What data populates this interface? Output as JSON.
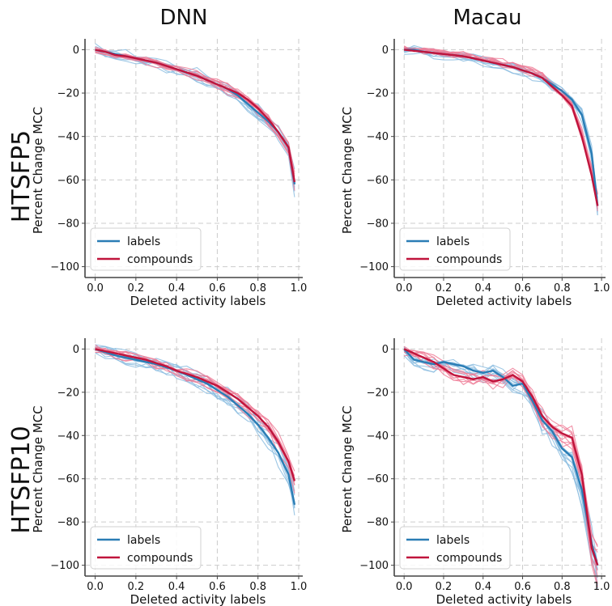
{
  "column_titles": [
    "DNN",
    "Macau"
  ],
  "row_titles": [
    "HTSFP5",
    "HTSFP10"
  ],
  "colors": {
    "labels_bold": "#2a7db5",
    "labels_thin": "#8cbde0",
    "compounds_bold": "#c0143c",
    "compounds_thin": "#ee7d97",
    "grid": "#cccccc"
  },
  "chart_data": [
    {
      "type": "line",
      "id": "dnn-htsfp5",
      "column": "DNN",
      "row": "HTSFP5",
      "xlabel": "Deleted activity labels",
      "ylabel": "Percent Change MCC",
      "xlim": [
        -0.05,
        1.02
      ],
      "ylim": [
        -105,
        5
      ],
      "xticks": [
        "0.0",
        "0.2",
        "0.4",
        "0.6",
        "0.8",
        "1.0"
      ],
      "yticks": [
        "0",
        "−20",
        "−40",
        "−60",
        "−80",
        "−100"
      ],
      "xtick_values": [
        0,
        0.2,
        0.4,
        0.6,
        0.8,
        1.0
      ],
      "ytick_values": [
        0,
        -20,
        -40,
        -60,
        -80,
        -100
      ],
      "grid": true,
      "legend_position": "lower-left",
      "legend": [
        "labels",
        "compounds"
      ],
      "x": [
        0,
        0.05,
        0.1,
        0.15,
        0.2,
        0.25,
        0.3,
        0.35,
        0.4,
        0.45,
        0.5,
        0.55,
        0.6,
        0.65,
        0.7,
        0.75,
        0.8,
        0.85,
        0.9,
        0.95,
        0.98
      ],
      "series": [
        {
          "name": "labels",
          "values": [
            0,
            -1,
            -2,
            -3,
            -4,
            -5,
            -6,
            -7.5,
            -9,
            -10.5,
            -12,
            -14,
            -16,
            -18,
            -21,
            -25,
            -29,
            -33,
            -38,
            -45,
            -62
          ],
          "spread": 3.5
        },
        {
          "name": "compounds",
          "values": [
            0,
            -1,
            -2.5,
            -3,
            -4,
            -5,
            -6,
            -7.5,
            -9,
            -10.5,
            -12,
            -14,
            -16,
            -18,
            -20,
            -23,
            -27,
            -32,
            -38,
            -45,
            -61
          ],
          "spread": 2.5
        }
      ]
    },
    {
      "type": "line",
      "id": "macau-htsfp5",
      "column": "Macau",
      "row": "HTSFP5",
      "xlabel": "Deleted activity labels",
      "ylabel": "Percent Change MCC",
      "xlim": [
        -0.05,
        1.02
      ],
      "ylim": [
        -105,
        5
      ],
      "xticks": [
        "0.0",
        "0.2",
        "0.4",
        "0.6",
        "0.8",
        "1.0"
      ],
      "yticks": [
        "0",
        "−20",
        "−40",
        "−60",
        "−80",
        "−100"
      ],
      "xtick_values": [
        0,
        0.2,
        0.4,
        0.6,
        0.8,
        1.0
      ],
      "ytick_values": [
        0,
        -20,
        -40,
        -60,
        -80,
        -100
      ],
      "grid": true,
      "legend_position": "lower-left",
      "legend": [
        "labels",
        "compounds"
      ],
      "x": [
        0,
        0.05,
        0.1,
        0.15,
        0.2,
        0.25,
        0.3,
        0.35,
        0.4,
        0.45,
        0.5,
        0.55,
        0.6,
        0.65,
        0.7,
        0.75,
        0.8,
        0.85,
        0.9,
        0.95,
        0.98
      ],
      "series": [
        {
          "name": "labels",
          "values": [
            0,
            0,
            -1,
            -1.5,
            -2,
            -2.5,
            -3,
            -4,
            -5,
            -6,
            -7,
            -8,
            -9.5,
            -11,
            -13,
            -16,
            -19,
            -23,
            -30,
            -48,
            -72
          ],
          "spread": 3
        },
        {
          "name": "compounds",
          "values": [
            0,
            -0.5,
            -1,
            -1.5,
            -2,
            -2.5,
            -3,
            -4,
            -5,
            -6,
            -7,
            -8,
            -9.5,
            -11,
            -13,
            -17,
            -21,
            -26,
            -40,
            -58,
            -72
          ],
          "spread": 3
        }
      ]
    },
    {
      "type": "line",
      "id": "dnn-htsfp10",
      "column": "DNN",
      "row": "HTSFP10",
      "xlabel": "Deleted activity labels",
      "ylabel": "Percent Change MCC",
      "xlim": [
        -0.05,
        1.02
      ],
      "ylim": [
        -105,
        5
      ],
      "xticks": [
        "0.0",
        "0.2",
        "0.4",
        "0.6",
        "0.8",
        "1.0"
      ],
      "yticks": [
        "0",
        "−20",
        "−40",
        "−60",
        "−80",
        "−100"
      ],
      "xtick_values": [
        0,
        0.2,
        0.4,
        0.6,
        0.8,
        1.0
      ],
      "ytick_values": [
        0,
        -20,
        -40,
        -60,
        -80,
        -100
      ],
      "grid": true,
      "legend_position": "lower-left",
      "legend": [
        "labels",
        "compounds"
      ],
      "x": [
        0,
        0.05,
        0.1,
        0.15,
        0.2,
        0.25,
        0.3,
        0.35,
        0.4,
        0.45,
        0.5,
        0.55,
        0.6,
        0.65,
        0.7,
        0.75,
        0.8,
        0.85,
        0.9,
        0.95,
        0.98
      ],
      "series": [
        {
          "name": "labels",
          "values": [
            0,
            -1.5,
            -3,
            -4,
            -5,
            -6,
            -7,
            -8.5,
            -10,
            -12,
            -14,
            -16,
            -19,
            -22,
            -26,
            -30,
            -35,
            -41,
            -48,
            -58,
            -72
          ],
          "spread": 4
        },
        {
          "name": "compounds",
          "values": [
            0,
            -1,
            -2,
            -3,
            -4,
            -5,
            -6.5,
            -8,
            -10,
            -11.5,
            -13,
            -15,
            -17,
            -20,
            -23,
            -27,
            -31,
            -36,
            -43,
            -52,
            -61
          ],
          "spread": 3
        }
      ]
    },
    {
      "type": "line",
      "id": "macau-htsfp10",
      "column": "Macau",
      "row": "HTSFP10",
      "xlabel": "Deleted activity labels",
      "ylabel": "Percent Change MCC",
      "xlim": [
        -0.05,
        1.02
      ],
      "ylim": [
        -105,
        5
      ],
      "xticks": [
        "0.0",
        "0.2",
        "0.4",
        "0.6",
        "0.8",
        "1.0"
      ],
      "yticks": [
        "0",
        "−20",
        "−40",
        "−60",
        "−80",
        "−100"
      ],
      "xtick_values": [
        0,
        0.2,
        0.4,
        0.6,
        0.8,
        1.0
      ],
      "ytick_values": [
        0,
        -20,
        -40,
        -60,
        -80,
        -100
      ],
      "grid": true,
      "legend_position": "lower-left",
      "legend": [
        "labels",
        "compounds"
      ],
      "x": [
        0,
        0.05,
        0.1,
        0.15,
        0.2,
        0.25,
        0.3,
        0.35,
        0.4,
        0.45,
        0.5,
        0.55,
        0.6,
        0.65,
        0.7,
        0.75,
        0.8,
        0.85,
        0.9,
        0.95,
        0.98
      ],
      "series": [
        {
          "name": "labels",
          "values": [
            0,
            -5,
            -6,
            -7,
            -6,
            -7,
            -8,
            -10,
            -11,
            -10,
            -13,
            -17,
            -16,
            -24,
            -33,
            -38,
            -46,
            -50,
            -65,
            -90,
            -100
          ],
          "spread": 5
        },
        {
          "name": "compounds",
          "values": [
            0,
            -2,
            -4,
            -6,
            -9,
            -12,
            -13,
            -14,
            -13,
            -15,
            -14,
            -12,
            -15,
            -22,
            -31,
            -36,
            -39,
            -41,
            -58,
            -92,
            -100
          ],
          "spread": 4
        }
      ]
    }
  ]
}
